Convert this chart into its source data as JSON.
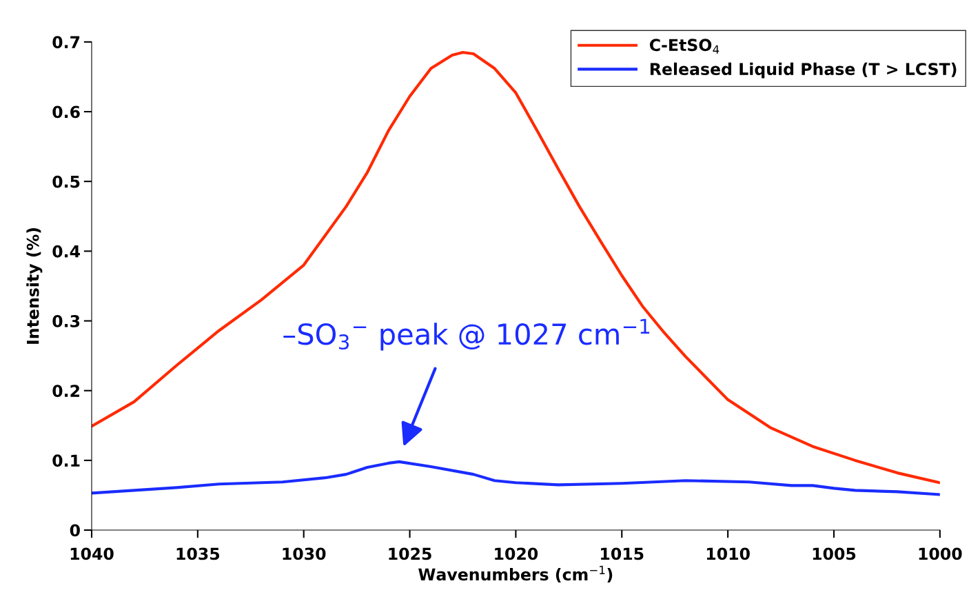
{
  "chart_data": {
    "type": "line",
    "xlabel": "Wavenumbers (cm$^{−1}$)",
    "ylabel": "Intensity (%)",
    "xlim": [
      1040,
      1000
    ],
    "xticks": [
      1040,
      1035,
      1030,
      1025,
      1020,
      1015,
      1010,
      1005,
      1000
    ],
    "ylim": [
      0,
      0.7
    ],
    "yticks": [
      {
        "value": 0,
        "label": "0"
      },
      0.1,
      0.2,
      0.3,
      0.4,
      0.5,
      0.6,
      0.7
    ],
    "grid": false,
    "legend": "top right",
    "marker": "none",
    "line_style": "solid",
    "series": [
      {
        "name": "C-EtSO$_{4}$",
        "color": "#ff2a00",
        "x": [
          1040,
          1038,
          1036,
          1034,
          1032,
          1030,
          1028,
          1027,
          1026,
          1025,
          1024,
          1023,
          1022.5,
          1022,
          1021,
          1020,
          1019,
          1018,
          1017,
          1016,
          1015,
          1014,
          1013,
          1012,
          1010,
          1008,
          1006,
          1004,
          1002,
          1000
        ],
        "values": [
          0.149,
          0.184,
          0.236,
          0.286,
          0.33,
          0.38,
          0.464,
          0.513,
          0.573,
          0.622,
          0.662,
          0.681,
          0.685,
          0.683,
          0.662,
          0.627,
          0.573,
          0.518,
          0.464,
          0.414,
          0.365,
          0.32,
          0.283,
          0.249,
          0.187,
          0.147,
          0.12,
          0.1,
          0.082,
          0.068
        ]
      },
      {
        "name": "Released Liquid Phase (T > LCST)",
        "color": "#1a2cff",
        "x": [
          1040,
          1036,
          1034,
          1031,
          1029,
          1028,
          1027,
          1026,
          1025.5,
          1024,
          1022,
          1021,
          1020,
          1018,
          1015,
          1012,
          1009,
          1007,
          1006,
          1005,
          1004,
          1002,
          1000
        ],
        "values": [
          0.053,
          0.061,
          0.066,
          0.069,
          0.075,
          0.08,
          0.09,
          0.096,
          0.098,
          0.091,
          0.08,
          0.071,
          0.068,
          0.065,
          0.067,
          0.071,
          0.069,
          0.064,
          0.064,
          0.06,
          0.057,
          0.055,
          0.051
        ]
      }
    ],
    "annotations": [
      "–SO$_{3}$$^{−}$ peak @ 1027 cm$^{−1}$"
    ]
  }
}
